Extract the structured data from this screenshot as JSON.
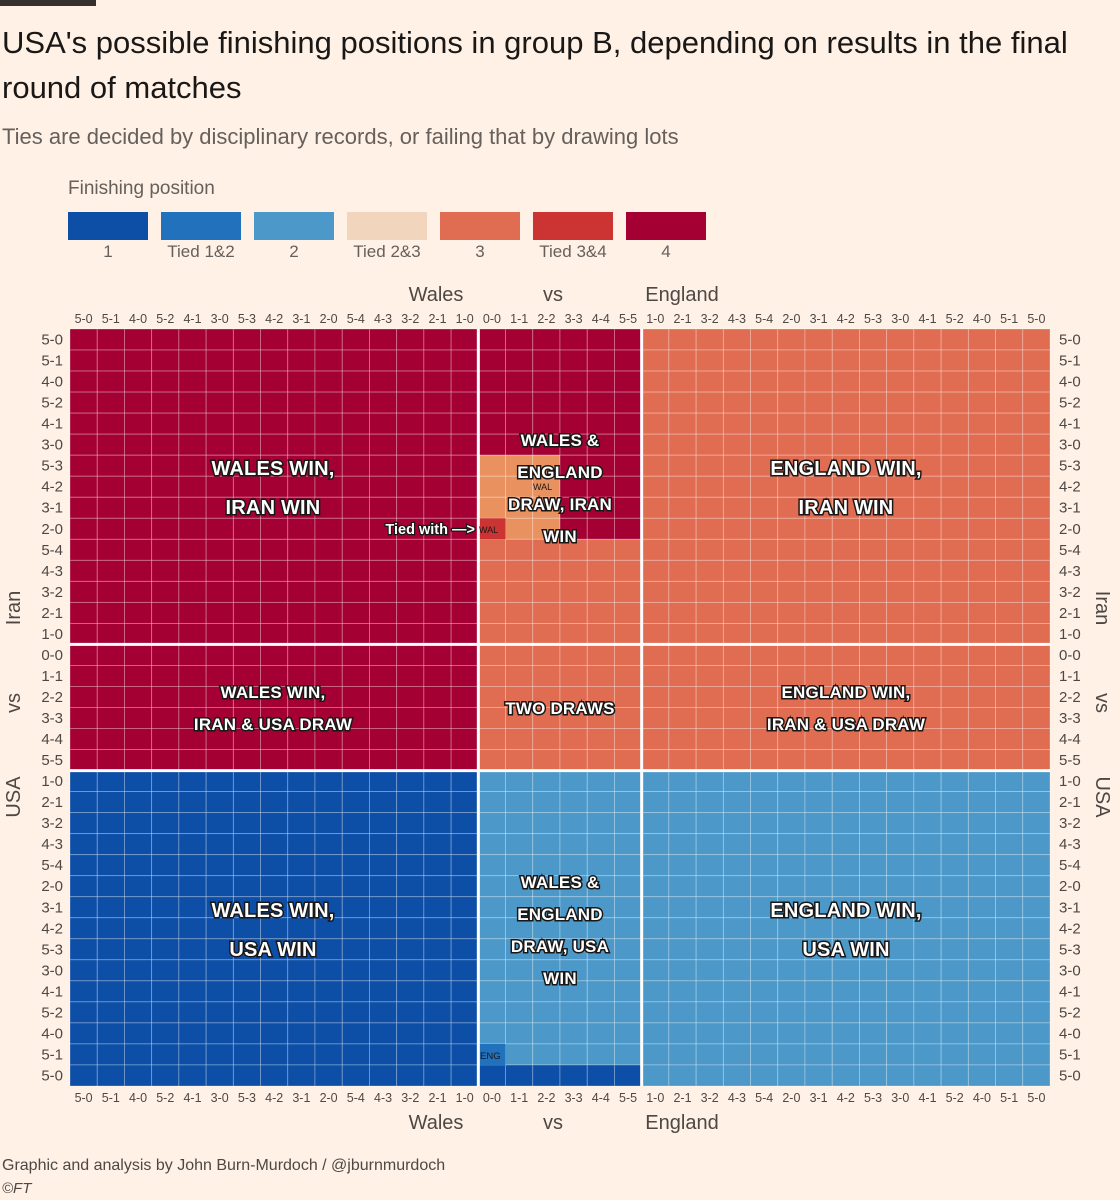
{
  "header": {
    "title": "USA's possible finishing positions in group B, depending on results in the final round of matches",
    "subtitle": "Ties are decided by disciplinary records, or failing that by drawing lots"
  },
  "legend": {
    "title": "Finishing position",
    "items": [
      {
        "label": "1",
        "color": "#0d4ea6"
      },
      {
        "label": "Tied 1&2",
        "color": "#2171bd"
      },
      {
        "label": "2",
        "color": "#4b98c9"
      },
      {
        "label": "Tied 2&3",
        "color": "#f1d5bc"
      },
      {
        "label": "3",
        "color": "#e06c52"
      },
      {
        "label": "Tied 3&4",
        "color": "#cc3333"
      },
      {
        "label": "4",
        "color": "#a50034"
      }
    ]
  },
  "axes": {
    "top": {
      "left": "Wales",
      "middle": "vs",
      "right": "England"
    },
    "bottom": {
      "left": "Wales",
      "middle": "vs",
      "right": "England"
    },
    "left": {
      "top": "Iran",
      "middle": "vs",
      "bottom": "USA"
    },
    "right": {
      "top": "Iran",
      "middle": "vs",
      "bottom": "USA"
    }
  },
  "chart_data": {
    "type": "heatmap",
    "x_ticks": [
      "5-0",
      "5-1",
      "4-0",
      "5-2",
      "4-1",
      "3-0",
      "5-3",
      "4-2",
      "3-1",
      "2-0",
      "5-4",
      "4-3",
      "3-2",
      "2-1",
      "1-0",
      "0-0",
      "1-1",
      "2-2",
      "3-3",
      "4-4",
      "5-5",
      "1-0",
      "2-1",
      "3-2",
      "4-3",
      "5-4",
      "2-0",
      "3-1",
      "4-2",
      "5-3",
      "3-0",
      "4-1",
      "5-2",
      "4-0",
      "5-1",
      "5-0"
    ],
    "y_ticks": [
      "5-0",
      "5-1",
      "4-0",
      "5-2",
      "4-1",
      "3-0",
      "5-3",
      "4-2",
      "3-1",
      "2-0",
      "5-4",
      "4-3",
      "3-2",
      "2-1",
      "1-0",
      "0-0",
      "1-1",
      "2-2",
      "3-3",
      "4-4",
      "5-5",
      "1-0",
      "2-1",
      "3-2",
      "4-3",
      "5-4",
      "2-0",
      "3-1",
      "4-2",
      "5-3",
      "3-0",
      "4-1",
      "5-2",
      "4-0",
      "5-1",
      "5-0"
    ],
    "x_groups": [
      "Wales win",
      "Draw",
      "England win"
    ],
    "y_groups": [
      "Iran win",
      "Draw",
      "USA win"
    ],
    "regions": [
      {
        "x": "Wales win",
        "y": "Iran win",
        "label": "WALES WIN, IRAN WIN",
        "position": "4"
      },
      {
        "x": "Draw",
        "y": "Iran win",
        "label": "WALES & ENGLAND DRAW, IRAN WIN",
        "position": "mixed: 4 and 3; Tied 2&3 / 3 where tied with WAL"
      },
      {
        "x": "England win",
        "y": "Iran win",
        "label": "ENGLAND WIN, IRAN WIN",
        "position": "3"
      },
      {
        "x": "Wales win",
        "y": "Draw",
        "label": "WALES WIN, IRAN & USA DRAW",
        "position": "4"
      },
      {
        "x": "Draw",
        "y": "Draw",
        "label": "TWO DRAWS",
        "position": "3"
      },
      {
        "x": "England win",
        "y": "Draw",
        "label": "ENGLAND WIN, IRAN & USA DRAW",
        "position": "3"
      },
      {
        "x": "Wales win",
        "y": "USA win",
        "label": "WALES WIN, USA WIN",
        "position": "1"
      },
      {
        "x": "Draw",
        "y": "USA win",
        "label": "WALES & ENGLAND DRAW, USA WIN",
        "position": "2; 1 at the bottom row"
      },
      {
        "x": "England win",
        "y": "USA win",
        "label": "ENGLAND WIN, USA WIN",
        "position": "2"
      }
    ],
    "annotations": {
      "tied_with": "Tied with —>",
      "wal": "WAL",
      "eng": "ENG"
    }
  },
  "footer": {
    "credit": "Graphic and analysis by John Burn-Murdoch / @jburnmurdoch",
    "copyright": "©FT"
  }
}
